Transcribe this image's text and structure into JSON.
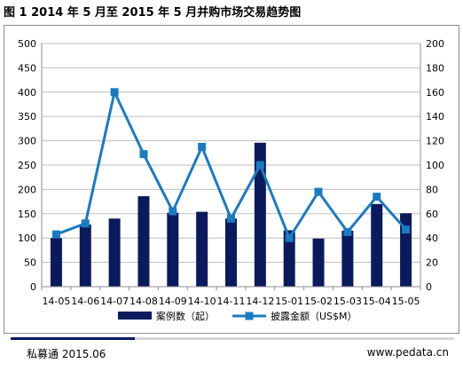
{
  "title": "图 1 2014 年 5 月至 2015 年 5 月并购市场交易趋势图",
  "footer": {
    "source": "私募通 2015.06",
    "url": "www.pedata.cn"
  },
  "colors": {
    "bar": "#0a1a5c",
    "line": "#1b7bc1",
    "grid": "#bfbfbf"
  },
  "chart_data": {
    "type": "bar+line",
    "categories": [
      "14-05",
      "14-06",
      "14-07",
      "14-08",
      "14-09",
      "14-10",
      "14-11",
      "14-12",
      "15-01",
      "15-02",
      "15-03",
      "15-04",
      "15-05"
    ],
    "series": [
      {
        "name": "案例数（起）",
        "type": "bar",
        "axis": "left",
        "values": [
          100,
          128,
          140,
          186,
          152,
          154,
          140,
          296,
          116,
          99,
          115,
          170,
          151
        ]
      },
      {
        "name": "披露金额（US$M）",
        "type": "line",
        "axis": "right",
        "values": [
          43,
          52,
          160,
          109,
          62,
          115,
          56,
          100,
          40,
          78,
          45,
          74,
          47
        ]
      }
    ],
    "y_left": {
      "min": 0,
      "max": 500,
      "step": 50,
      "ticks": [
        "0",
        "50",
        "100",
        "150",
        "200",
        "250",
        "300",
        "350",
        "400",
        "450",
        "500"
      ]
    },
    "y_right": {
      "min": 0,
      "max": 200,
      "step": 20,
      "ticks": [
        "0",
        "20",
        "40",
        "60",
        "80",
        "100",
        "120",
        "140",
        "160",
        "180",
        "200"
      ]
    },
    "grid": true,
    "legend_position": "bottom"
  }
}
